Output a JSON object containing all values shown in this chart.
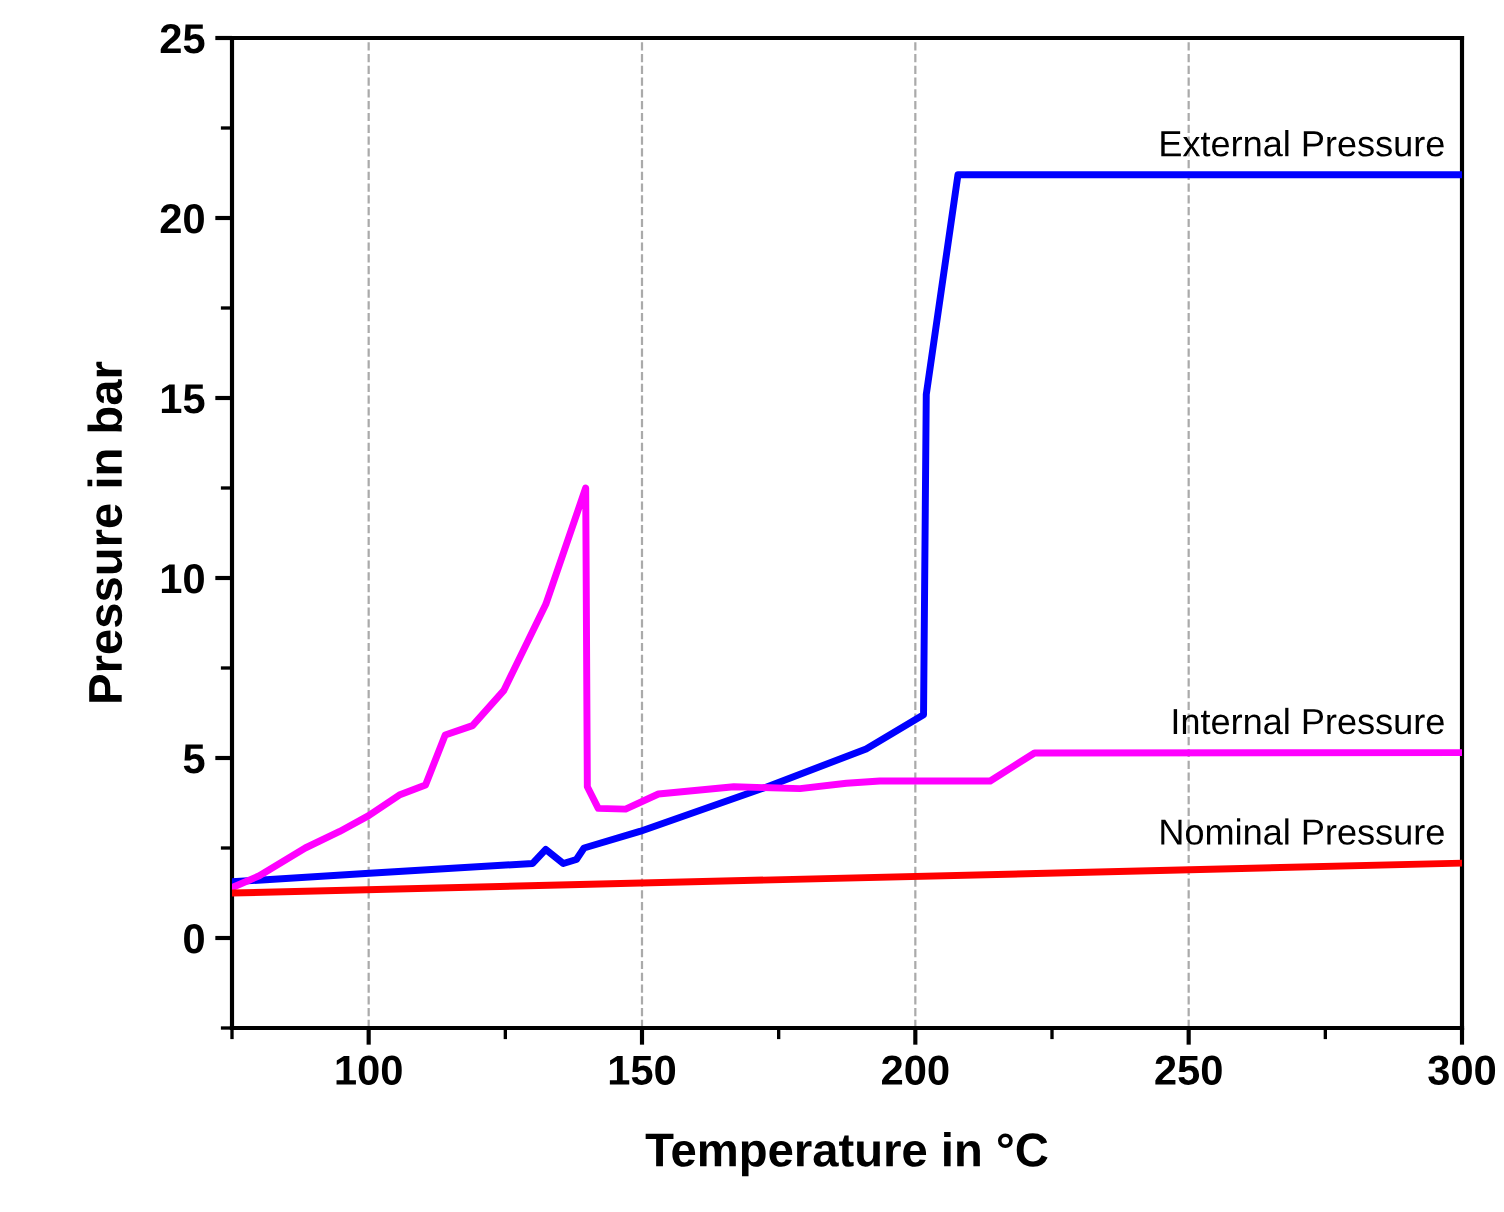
{
  "chart_data": {
    "type": "line",
    "xlabel": "Temperature in °C",
    "ylabel": "Pressure in bar",
    "xlim": [
      75,
      300
    ],
    "xticks": [
      100,
      150,
      200,
      250,
      300
    ],
    "ylim": [
      -2.5,
      25
    ],
    "yticks": [
      0,
      5,
      10,
      15,
      20,
      25
    ],
    "grid": "x",
    "marker": "none",
    "line_style": "solid",
    "series": [
      {
        "name": "External Pressure",
        "color": "#0000ff",
        "x": [
          75,
          99.4,
          130,
          132.4,
          135.6,
          138,
          139.4,
          149.6,
          172.7,
          191,
          201.5,
          202,
          207.8,
          300
        ],
        "values": [
          1.56,
          1.79,
          2.07,
          2.46,
          2.07,
          2.18,
          2.5,
          2.96,
          4.19,
          5.25,
          6.2,
          15.1,
          21.2,
          21.2
        ]
      },
      {
        "name": "Internal Pressure",
        "color": "#ff00ff",
        "x": [
          75,
          80,
          88.4,
          94.7,
          100,
          105.6,
          110.4,
          114,
          119,
          124.7,
          132.4,
          139.7,
          140,
          142,
          147,
          153,
          166.8,
          178.9,
          187.4,
          193.5,
          213.7,
          221.8,
          300
        ],
        "values": [
          1.4,
          1.73,
          2.5,
          2.96,
          3.4,
          3.97,
          4.25,
          5.64,
          5.9,
          6.87,
          9.27,
          12.5,
          4.2,
          3.6,
          3.58,
          4.0,
          4.2,
          4.15,
          4.3,
          4.36,
          4.36,
          5.14,
          5.15
        ]
      },
      {
        "name": "Nominal Pressure",
        "color": "#ff0000",
        "x": [
          75,
          300
        ],
        "values": [
          1.25,
          2.08
        ]
      }
    ]
  }
}
